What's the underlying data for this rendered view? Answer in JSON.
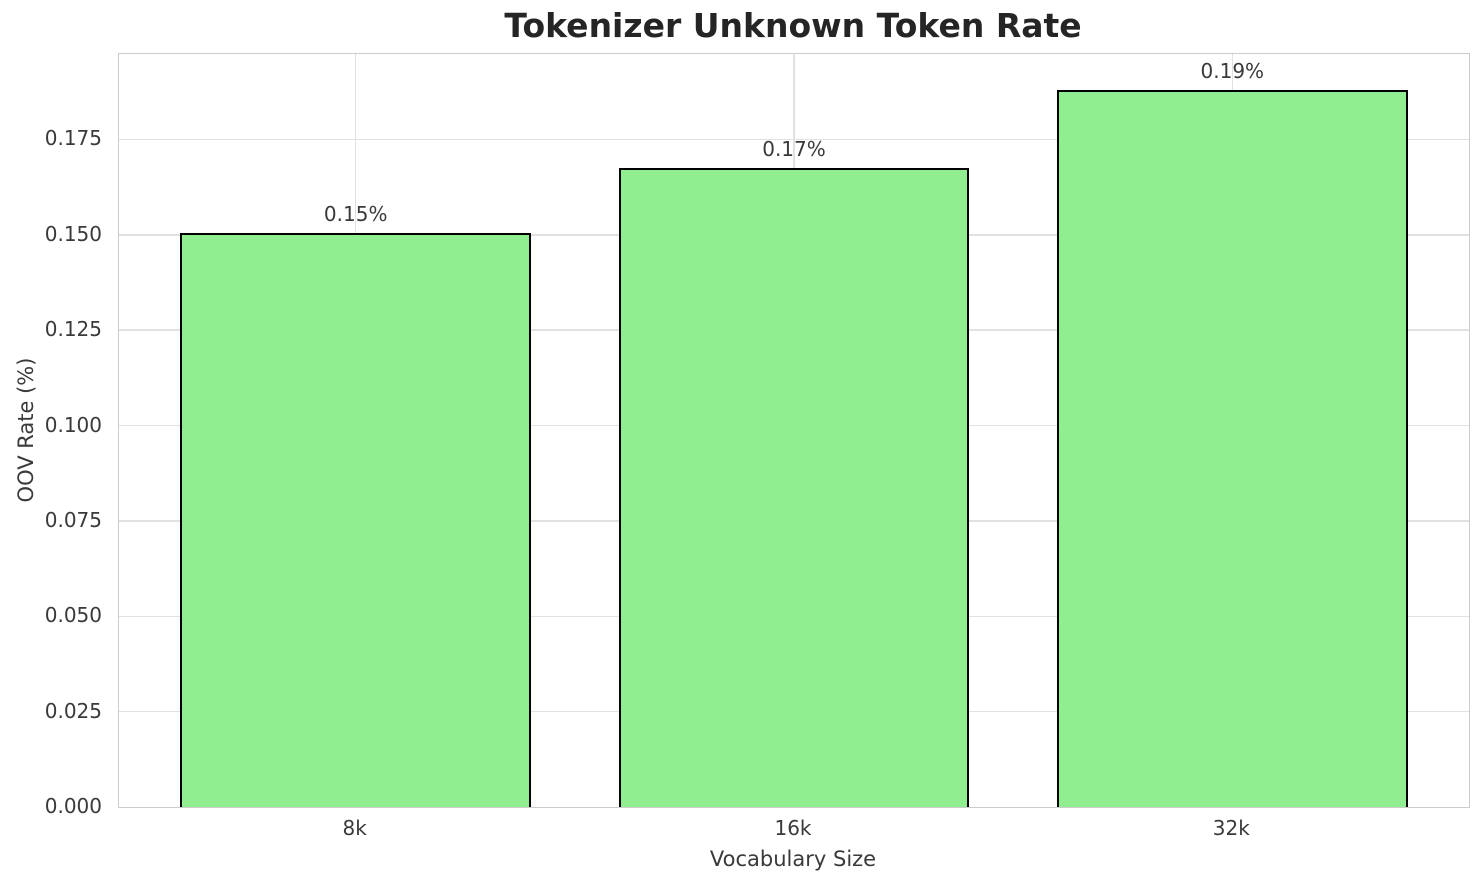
{
  "chart_data": {
    "type": "bar",
    "title": "Tokenizer Unknown Token Rate",
    "xlabel": "Vocabulary Size",
    "ylabel": "OOV Rate (%)",
    "categories": [
      "8k",
      "16k",
      "32k"
    ],
    "values": [
      0.1505,
      0.1675,
      0.188
    ],
    "bar_labels": [
      "0.15%",
      "0.17%",
      "0.19%"
    ],
    "ylim": [
      0,
      0.1974
    ],
    "yticks": [
      0,
      0.025,
      0.05,
      0.075,
      0.1,
      0.125,
      0.15,
      0.175
    ],
    "ytick_labels": [
      "0.000",
      "0.025",
      "0.050",
      "0.075",
      "0.100",
      "0.125",
      "0.150",
      "0.175"
    ],
    "grid": true,
    "legend_position": "none",
    "colors": {
      "bar_fill": "#90EE90",
      "bar_edge": "#000000",
      "grid": "#E1E1E1",
      "spine": "#CCCCCC",
      "tick_text": "#3A3A3A",
      "title_text": "#252525",
      "background": "#FFFFFF"
    }
  }
}
